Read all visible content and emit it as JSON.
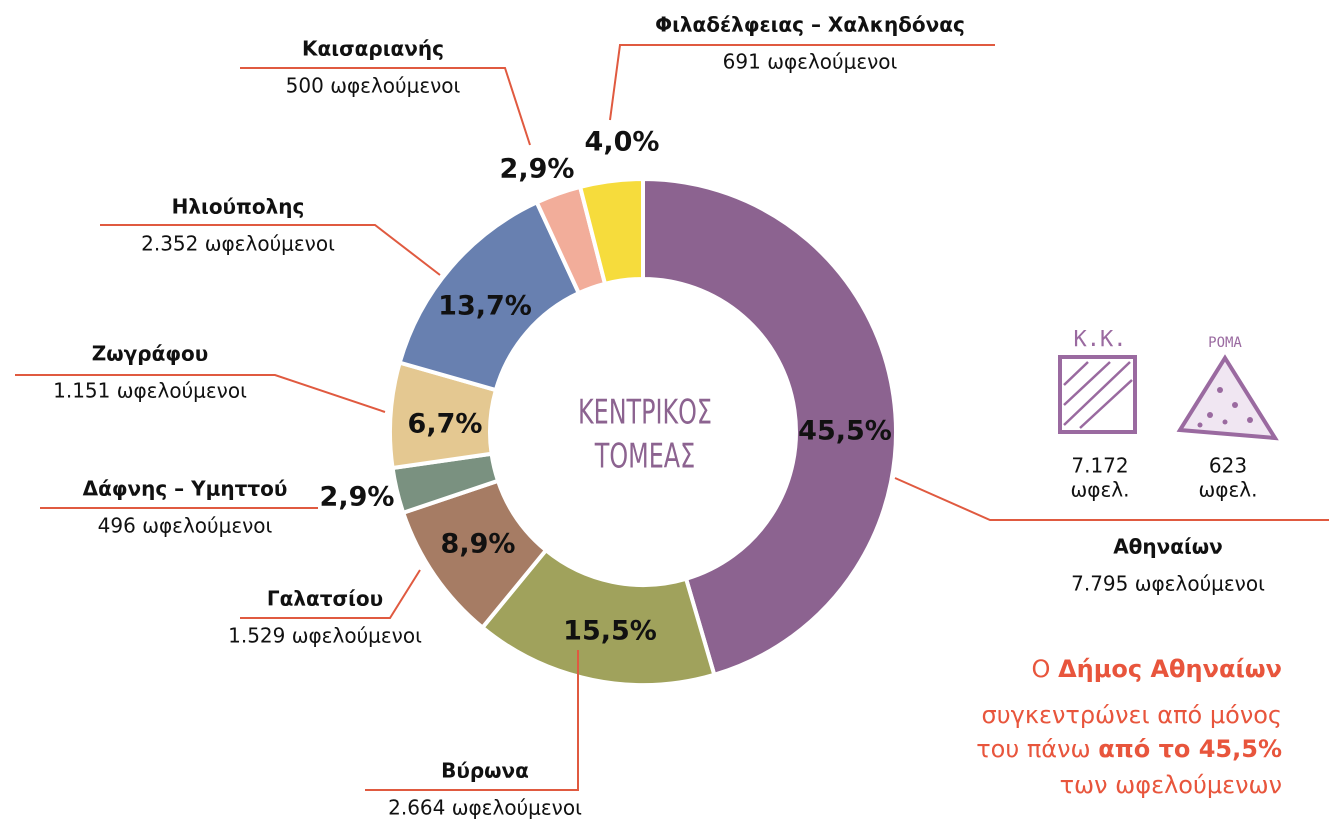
{
  "chart_data": {
    "type": "donut",
    "center_label": [
      "ΚΕΝΤΡΙΚΟΣ",
      "ΤΟΜΕΑΣ"
    ],
    "categories": [
      "Αθηναίων",
      "Βύρωνα",
      "Γαλατσίου",
      "Δάφνης – Υμηττού",
      "Ζωγράφου",
      "Ηλιούπολης",
      "Καισαριανής",
      "Φιλαδέλφειας – Χαλκηδόνας"
    ],
    "values": [
      45.5,
      15.5,
      8.9,
      2.9,
      6.7,
      13.7,
      2.9,
      4.0
    ],
    "value_labels": [
      "45,5%",
      "15,5%",
      "8,9%",
      "2,9%",
      "6,7%",
      "13,7%",
      "2,9%",
      "4,0%"
    ],
    "count_labels": [
      "7.795 ωφελούμενοι",
      "2.664 ωφελούμενοι",
      "1.529 ωφελούμενοι",
      "496 ωφελούμενοι",
      "1.151 ωφελούμενοι",
      "2.352 ωφελούμενοι",
      "500 ωφελούμενοι",
      "691 ωφελούμενοι"
    ],
    "colors": [
      "#8c6390",
      "#a0a25c",
      "#a67c64",
      "#7a9180",
      "#e4c891",
      "#6880b0",
      "#f2ad9a",
      "#f6dc3c"
    ]
  },
  "side_groups": [
    {
      "title": "Κ.Κ.",
      "count": "7.172",
      "unit": "ωφελ."
    },
    {
      "title": "ΡΟΜΑ",
      "count": "623",
      "unit": "ωφελ."
    }
  ],
  "note": {
    "parts": [
      "Ο ",
      "Δήμος Αθηναίων",
      "συγκεντρώνει από μόνος",
      "του πάνω ",
      "από το 45,5%",
      "των ωφελούμενων"
    ]
  }
}
